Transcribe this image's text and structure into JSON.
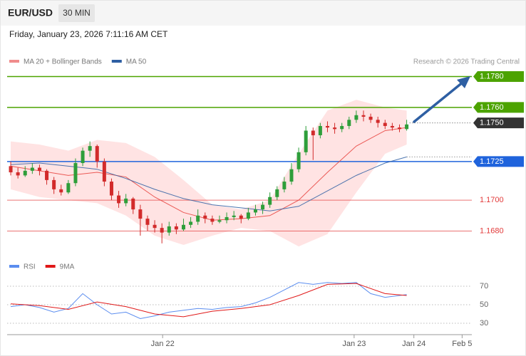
{
  "chart_data": [
    {
      "type": "candlestick",
      "title": "EUR/USD",
      "timeframe": "30 MIN",
      "subtitle": "Friday, January 23, 2026 7:11:16 AM CET",
      "source": "Research © 2026 Trading Central",
      "xlim": [
        -0.5,
        64.05
      ],
      "ylim": [
        1.1665,
        1.1795
      ],
      "up_color": "#2e9e3a",
      "down_color": "#d22b2b",
      "ohlc": [
        [
          1.1722,
          1.1725,
          1.1716,
          1.1718
        ],
        [
          1.1718,
          1.1721,
          1.1714,
          1.1716
        ],
        [
          1.1716,
          1.1722,
          1.1715,
          1.1719
        ],
        [
          1.1719,
          1.1724,
          1.1717,
          1.1721
        ],
        [
          1.1721,
          1.1723,
          1.1716,
          1.1719
        ],
        [
          1.1719,
          1.172,
          1.171,
          1.1713
        ],
        [
          1.1713,
          1.1715,
          1.1704,
          1.1707
        ],
        [
          1.1707,
          1.171,
          1.1703,
          1.1705
        ],
        [
          1.1705,
          1.1713,
          1.1704,
          1.1711
        ],
        [
          1.1711,
          1.1727,
          1.1709,
          1.1724
        ],
        [
          1.1724,
          1.1734,
          1.1722,
          1.1732
        ],
        [
          1.1732,
          1.1738,
          1.1728,
          1.1735
        ],
        [
          1.1735,
          1.1736,
          1.1721,
          1.1725
        ],
        [
          1.1725,
          1.1727,
          1.1709,
          1.1712
        ],
        [
          1.1712,
          1.1714,
          1.17,
          1.1703
        ],
        [
          1.1703,
          1.1706,
          1.1695,
          1.1698
        ],
        [
          1.1698,
          1.1704,
          1.1696,
          1.1701
        ],
        [
          1.1701,
          1.1702,
          1.1691,
          1.1694
        ],
        [
          1.1694,
          1.1697,
          1.1677,
          1.1688
        ],
        [
          1.1688,
          1.169,
          1.168,
          1.1684
        ],
        [
          1.1684,
          1.1687,
          1.1679,
          1.1682
        ],
        [
          1.1682,
          1.1685,
          1.1672,
          1.1679
        ],
        [
          1.1679,
          1.1686,
          1.1677,
          1.1683
        ],
        [
          1.1683,
          1.1685,
          1.1678,
          1.1681
        ],
        [
          1.1681,
          1.1688,
          1.168,
          1.1684
        ],
        [
          1.1684,
          1.1689,
          1.1682,
          1.1686
        ],
        [
          1.1686,
          1.1694,
          1.1684,
          1.169
        ],
        [
          1.169,
          1.1692,
          1.1685,
          1.1688
        ],
        [
          1.1688,
          1.169,
          1.1684,
          1.1686
        ],
        [
          1.1686,
          1.169,
          1.1685,
          1.1687
        ],
        [
          1.1687,
          1.1692,
          1.1685,
          1.1689
        ],
        [
          1.1689,
          1.1693,
          1.1687,
          1.169
        ],
        [
          1.169,
          1.1691,
          1.1685,
          1.1688
        ],
        [
          1.1688,
          1.1695,
          1.1687,
          1.1692
        ],
        [
          1.1692,
          1.1697,
          1.169,
          1.1694
        ],
        [
          1.1694,
          1.1699,
          1.1691,
          1.1697
        ],
        [
          1.1697,
          1.1705,
          1.1695,
          1.1702
        ],
        [
          1.1702,
          1.1709,
          1.17,
          1.1707
        ],
        [
          1.1707,
          1.1715,
          1.1705,
          1.1712
        ],
        [
          1.1712,
          1.1724,
          1.171,
          1.172
        ],
        [
          1.172,
          1.1734,
          1.1718,
          1.1731
        ],
        [
          1.1731,
          1.1748,
          1.1729,
          1.1745
        ],
        [
          1.1745,
          1.1747,
          1.1726,
          1.1742
        ],
        [
          1.1742,
          1.175,
          1.174,
          1.1748
        ],
        [
          1.1748,
          1.1751,
          1.1744,
          1.1747
        ],
        [
          1.1747,
          1.175,
          1.1743,
          1.1746
        ],
        [
          1.1746,
          1.175,
          1.1744,
          1.1748
        ],
        [
          1.1748,
          1.1754,
          1.1746,
          1.1752
        ],
        [
          1.1752,
          1.1758,
          1.175,
          1.1755
        ],
        [
          1.1755,
          1.1758,
          1.1751,
          1.1754
        ],
        [
          1.1754,
          1.1756,
          1.175,
          1.1752
        ],
        [
          1.1752,
          1.1754,
          1.1747,
          1.175
        ],
        [
          1.175,
          1.1752,
          1.1746,
          1.1748
        ],
        [
          1.1748,
          1.175,
          1.1745,
          1.1747
        ],
        [
          1.1747,
          1.1749,
          1.1744,
          1.1746
        ],
        [
          1.1746,
          1.1752,
          1.1745,
          1.1749
        ]
      ],
      "series": [
        {
          "name": "MA 20 + Bollinger Bands",
          "color": "#e8413c",
          "legend_color": "#f08c8c",
          "band_color": "#ffd9d9",
          "x": [
            0,
            4,
            8,
            12,
            16,
            20,
            24,
            28,
            32,
            36,
            40,
            44,
            48,
            52,
            55
          ],
          "values": [
            1.1722,
            1.1719,
            1.1716,
            1.1718,
            1.1715,
            1.1702,
            1.1692,
            1.1687,
            1.1688,
            1.169,
            1.17,
            1.1718,
            1.1735,
            1.1745,
            1.1747
          ],
          "upper": [
            1.1738,
            1.1736,
            1.1732,
            1.1739,
            1.1737,
            1.1728,
            1.1713,
            1.1697,
            1.1694,
            1.17,
            1.173,
            1.1758,
            1.1765,
            1.176,
            1.1758
          ],
          "lower": [
            1.1707,
            1.1702,
            1.17,
            1.1698,
            1.169,
            1.1677,
            1.1671,
            1.1677,
            1.1682,
            1.168,
            1.167,
            1.1678,
            1.1705,
            1.173,
            1.1736
          ]
        },
        {
          "name": "MA 50",
          "color": "#2e5fa3",
          "legend_color": "#2e5fa3",
          "x": [
            0,
            4,
            8,
            12,
            16,
            20,
            24,
            28,
            32,
            36,
            40,
            44,
            48,
            52,
            55
          ],
          "values": [
            1.1723,
            1.1724,
            1.1722,
            1.172,
            1.1714,
            1.1707,
            1.1701,
            1.1697,
            1.1695,
            1.1693,
            1.1696,
            1.1706,
            1.1716,
            1.1724,
            1.1728
          ]
        }
      ],
      "levels": [
        {
          "value": 1.178,
          "label": "1.1780",
          "color": "#4ca300",
          "style": "box"
        },
        {
          "value": 1.176,
          "label": "1.1760",
          "color": "#4ca300",
          "style": "box"
        },
        {
          "value": 1.175,
          "label": "1.1750",
          "color": "#333333",
          "style": "current"
        },
        {
          "value": 1.1725,
          "label": "1.1725",
          "color": "#1f63dc",
          "style": "box"
        },
        {
          "value": 1.17,
          "label": "1.1700",
          "color": "#e23a3a",
          "style": "text"
        },
        {
          "value": 1.168,
          "label": "1.1680",
          "color": "#e23a3a",
          "style": "text"
        }
      ]
    },
    {
      "type": "line",
      "xlim": [
        -0.5,
        64.05
      ],
      "ylim": [
        20,
        90
      ],
      "yticks": [
        70,
        50,
        30
      ],
      "grid": true,
      "xticks": [
        {
          "value": 21.1,
          "label": "Jan 22"
        },
        {
          "value": 47.7,
          "label": "Jan 23"
        },
        {
          "value": 56,
          "label": "Jan 24"
        },
        {
          "value": 62.7,
          "label": "Feb 5"
        }
      ],
      "series": [
        {
          "name": "RSI",
          "color": "#5b8def",
          "x": [
            0,
            2,
            4,
            6,
            8,
            10,
            12,
            14,
            16,
            18,
            20,
            22,
            24,
            26,
            28,
            30,
            32,
            34,
            36,
            38,
            40,
            42,
            44,
            46,
            48,
            50,
            52,
            54,
            55
          ],
          "values": [
            48,
            50,
            47,
            42,
            46,
            62,
            50,
            40,
            42,
            35,
            38,
            42,
            44,
            46,
            45,
            47,
            48,
            52,
            58,
            66,
            74,
            72,
            74,
            73,
            74,
            62,
            58,
            60,
            61
          ]
        },
        {
          "name": "9MA",
          "color": "#e01818",
          "x": [
            0,
            4,
            8,
            12,
            16,
            20,
            24,
            28,
            32,
            36,
            40,
            44,
            48,
            52,
            55
          ],
          "values": [
            51,
            49,
            45,
            53,
            48,
            40,
            37,
            43,
            46,
            50,
            60,
            72,
            73,
            62,
            60
          ]
        }
      ]
    }
  ]
}
